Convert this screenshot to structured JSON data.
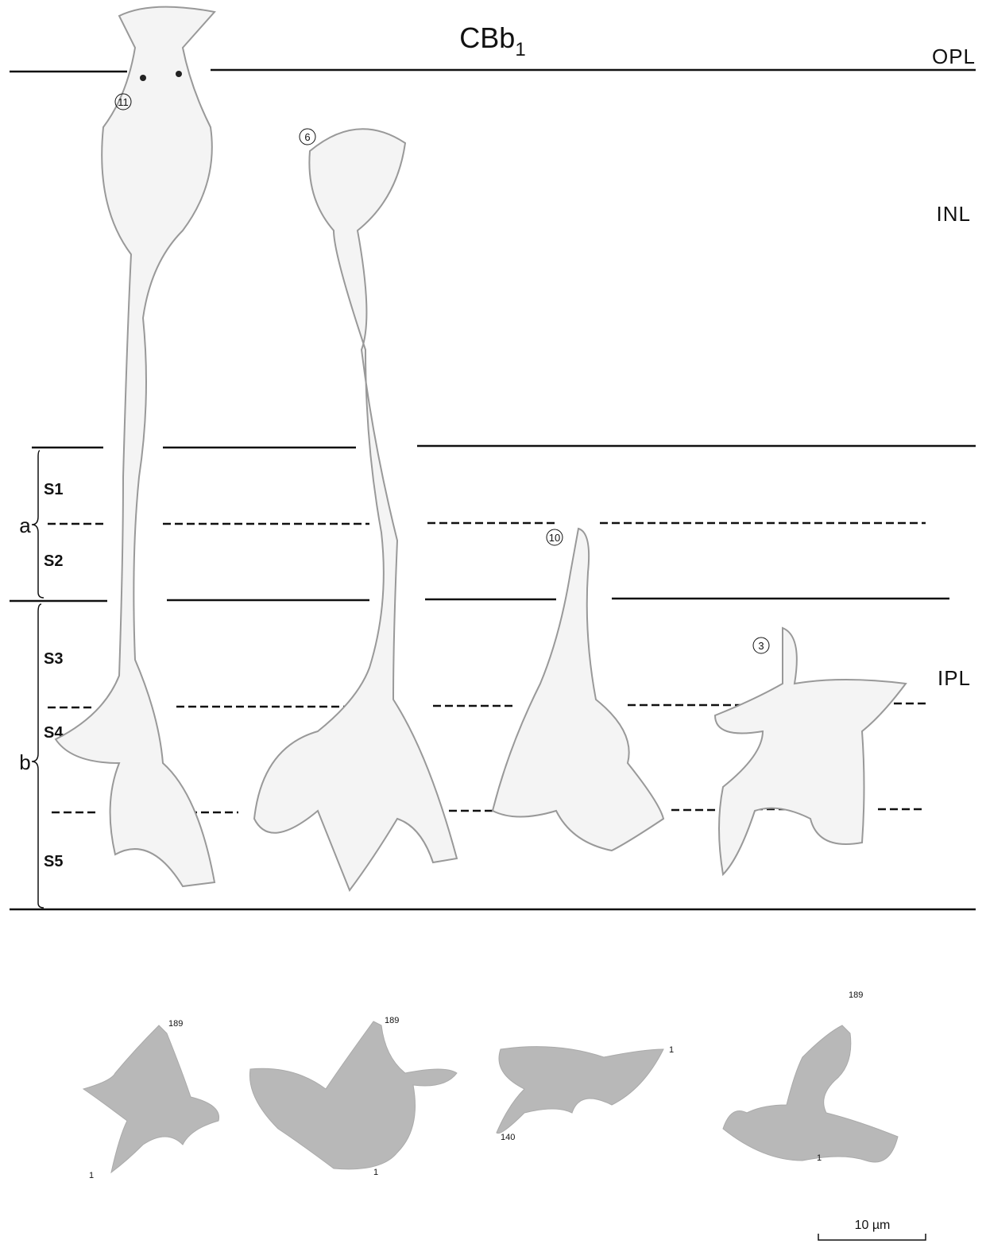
{
  "title": {
    "main": "CBb",
    "sub": "1"
  },
  "layers": {
    "opl": "OPL",
    "inl": "INL",
    "ipl": "IPL"
  },
  "sublaminae": {
    "a": "a",
    "b": "b",
    "strata": [
      "S1",
      "S2",
      "S3",
      "S4",
      "S5"
    ]
  },
  "cells": [
    {
      "number": "11",
      "projection_labels": [
        "189",
        "1"
      ]
    },
    {
      "number": "6",
      "projection_labels": [
        "189",
        "1"
      ]
    },
    {
      "number": "10",
      "projection_labels": [
        "1",
        "140"
      ]
    },
    {
      "number": "3",
      "projection_labels": [
        "189",
        "1"
      ]
    }
  ],
  "scale_bar": "10 µm"
}
